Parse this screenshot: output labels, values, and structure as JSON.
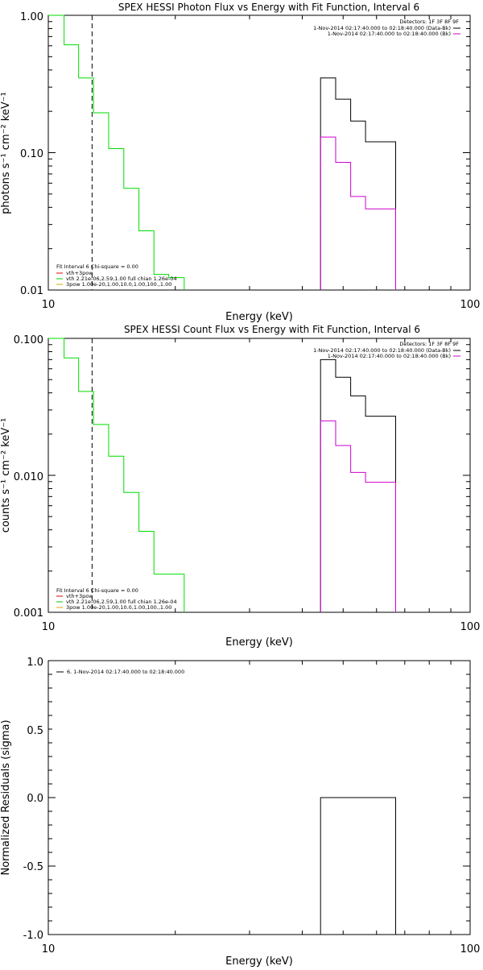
{
  "chart_data": [
    {
      "type": "line",
      "title": "SPEX HESSI Photon Flux vs Energy with Fit Function, Interval 6",
      "xlabel": "Energy (keV)",
      "ylabel": "photons s⁻¹ cm⁻² keV⁻¹",
      "xscale": "log",
      "yscale": "log",
      "xlim": [
        10,
        100
      ],
      "ylim": [
        0.01,
        1.0
      ],
      "xticks": [
        "10",
        "100"
      ],
      "yticks": [
        {
          "value": 1.0,
          "label": "1.00"
        },
        {
          "value": 0.1,
          "label": "0.10"
        },
        {
          "value": 0.01,
          "label": "0.01"
        }
      ],
      "vline": {
        "x": 12.7,
        "style": "dashed",
        "color": "#000000"
      },
      "legend_top_right": {
        "header": "Detectors: 1F 3F 8F 9F",
        "entries": [
          {
            "text": "1-Nov-2014 02:17:40.000 to 02:18:40.000 (Data-Bk)",
            "color": "#000000"
          },
          {
            "text": "1-Nov-2014 02:17:40.000 to 02:18:40.000 (Bk)",
            "color": "#cc00cc"
          }
        ]
      },
      "legend_bottom_left": {
        "header": "Fit Interval  6    Chi-square = 0.00",
        "entries": [
          {
            "text": "vth+3pow",
            "color": "#dd0000"
          },
          {
            "text": "vth 2.21e-06,2.59,1.00  full chian 1.26e-04",
            "color": "#00cc00"
          },
          {
            "text": "3pow 1.00e-20,1.00,10.0,1.00,100.,1.00",
            "color": "#ddaa00"
          }
        ]
      },
      "series": [
        {
          "role": "fit",
          "color": "#00dd00",
          "edges": [
            10,
            10.9,
            11.8,
            12.8,
            13.9,
            15.1,
            16.4,
            17.8,
            19.3,
            21
          ],
          "values": [
            1.0,
            0.61,
            0.35,
            0.195,
            0.107,
            0.055,
            0.027,
            0.013,
            0.0123
          ]
        },
        {
          "role": "data-bk",
          "color": "#000000",
          "edges": [
            44.2,
            48.0,
            52.1,
            56.5,
            61.3,
            66.6
          ],
          "values": [
            0.35,
            0.245,
            0.17,
            0.12,
            0.12
          ]
        },
        {
          "role": "bk",
          "color": "#cc00cc",
          "edges": [
            44.2,
            48.0,
            52.1,
            56.5,
            61.3,
            66.6
          ],
          "values": [
            0.13,
            0.085,
            0.048,
            0.039,
            0.039
          ]
        }
      ]
    },
    {
      "type": "line",
      "title": "SPEX HESSI Count Flux vs Energy with Fit Function, Interval 6",
      "xlabel": "Energy (keV)",
      "ylabel": "counts s⁻¹ cm⁻² keV⁻¹",
      "xscale": "log",
      "yscale": "log",
      "xlim": [
        10,
        100
      ],
      "ylim": [
        0.001,
        0.1
      ],
      "xticks": [
        "10",
        "100"
      ],
      "yticks": [
        {
          "value": 0.1,
          "label": "0.100"
        },
        {
          "value": 0.01,
          "label": "0.010"
        },
        {
          "value": 0.001,
          "label": "0.001"
        }
      ],
      "vline": {
        "x": 12.7,
        "style": "dashed",
        "color": "#000000"
      },
      "legend_top_right": {
        "header": "Detectors: 1F 3F 8F 9F",
        "entries": [
          {
            "text": "1-Nov-2014 02:17:40.000 to 02:18:40.000 (Data-Bk)",
            "color": "#000000"
          },
          {
            "text": "1-Nov-2014 02:17:40.000 to 02:18:40.000 (Bk)",
            "color": "#cc00cc"
          }
        ]
      },
      "legend_bottom_left": {
        "header": "Fit Interval  6    Chi-square = 0.00",
        "entries": [
          {
            "text": "vth+3pow",
            "color": "#dd0000"
          },
          {
            "text": "vth 2.21e-06,2.59,1.00  full chian 1.26e-04",
            "color": "#00cc00"
          },
          {
            "text": "3pow 1.00e-20,1.00,10.0,1.00,100.,1.00",
            "color": "#ddaa00"
          }
        ]
      },
      "series": [
        {
          "role": "fit",
          "color": "#00dd00",
          "edges": [
            10,
            10.9,
            11.8,
            12.8,
            13.9,
            15.1,
            16.4,
            17.8,
            19.3,
            21
          ],
          "values": [
            0.1,
            0.072,
            0.041,
            0.0235,
            0.0138,
            0.0075,
            0.0039,
            0.0019,
            0.0019
          ]
        },
        {
          "role": "data-bk",
          "color": "#000000",
          "edges": [
            44.2,
            48.0,
            52.1,
            56.5,
            61.3,
            66.6
          ],
          "values": [
            0.07,
            0.052,
            0.038,
            0.027,
            0.027
          ]
        },
        {
          "role": "bk",
          "color": "#cc00cc",
          "edges": [
            44.2,
            48.0,
            52.1,
            56.5,
            61.3,
            66.6
          ],
          "values": [
            0.025,
            0.0165,
            0.0105,
            0.0089,
            0.0089
          ]
        }
      ]
    },
    {
      "type": "line",
      "title": "",
      "xlabel": "Energy (keV)",
      "ylabel": "Normalized Residuals (sigma)",
      "xscale": "log",
      "yscale": "linear",
      "xlim": [
        10,
        100
      ],
      "ylim": [
        -1.0,
        1.0
      ],
      "xticks": [
        "10",
        "100"
      ],
      "yticks": [
        {
          "value": 1.0,
          "label": "1.0"
        },
        {
          "value": 0.5,
          "label": "0.5"
        },
        {
          "value": 0.0,
          "label": "0.0"
        },
        {
          "value": -0.5,
          "label": "-0.5"
        },
        {
          "value": -1.0,
          "label": "-1.0"
        }
      ],
      "legend_top_left": {
        "entries": [
          {
            "text": "6.  1-Nov-2014 02:17:40.000 to 02:18:40.000",
            "color": "#000000"
          }
        ]
      },
      "series": [
        {
          "role": "residual",
          "color": "#000000",
          "edges": [
            44.2,
            66.6
          ],
          "values": [
            0.0
          ]
        }
      ]
    }
  ]
}
